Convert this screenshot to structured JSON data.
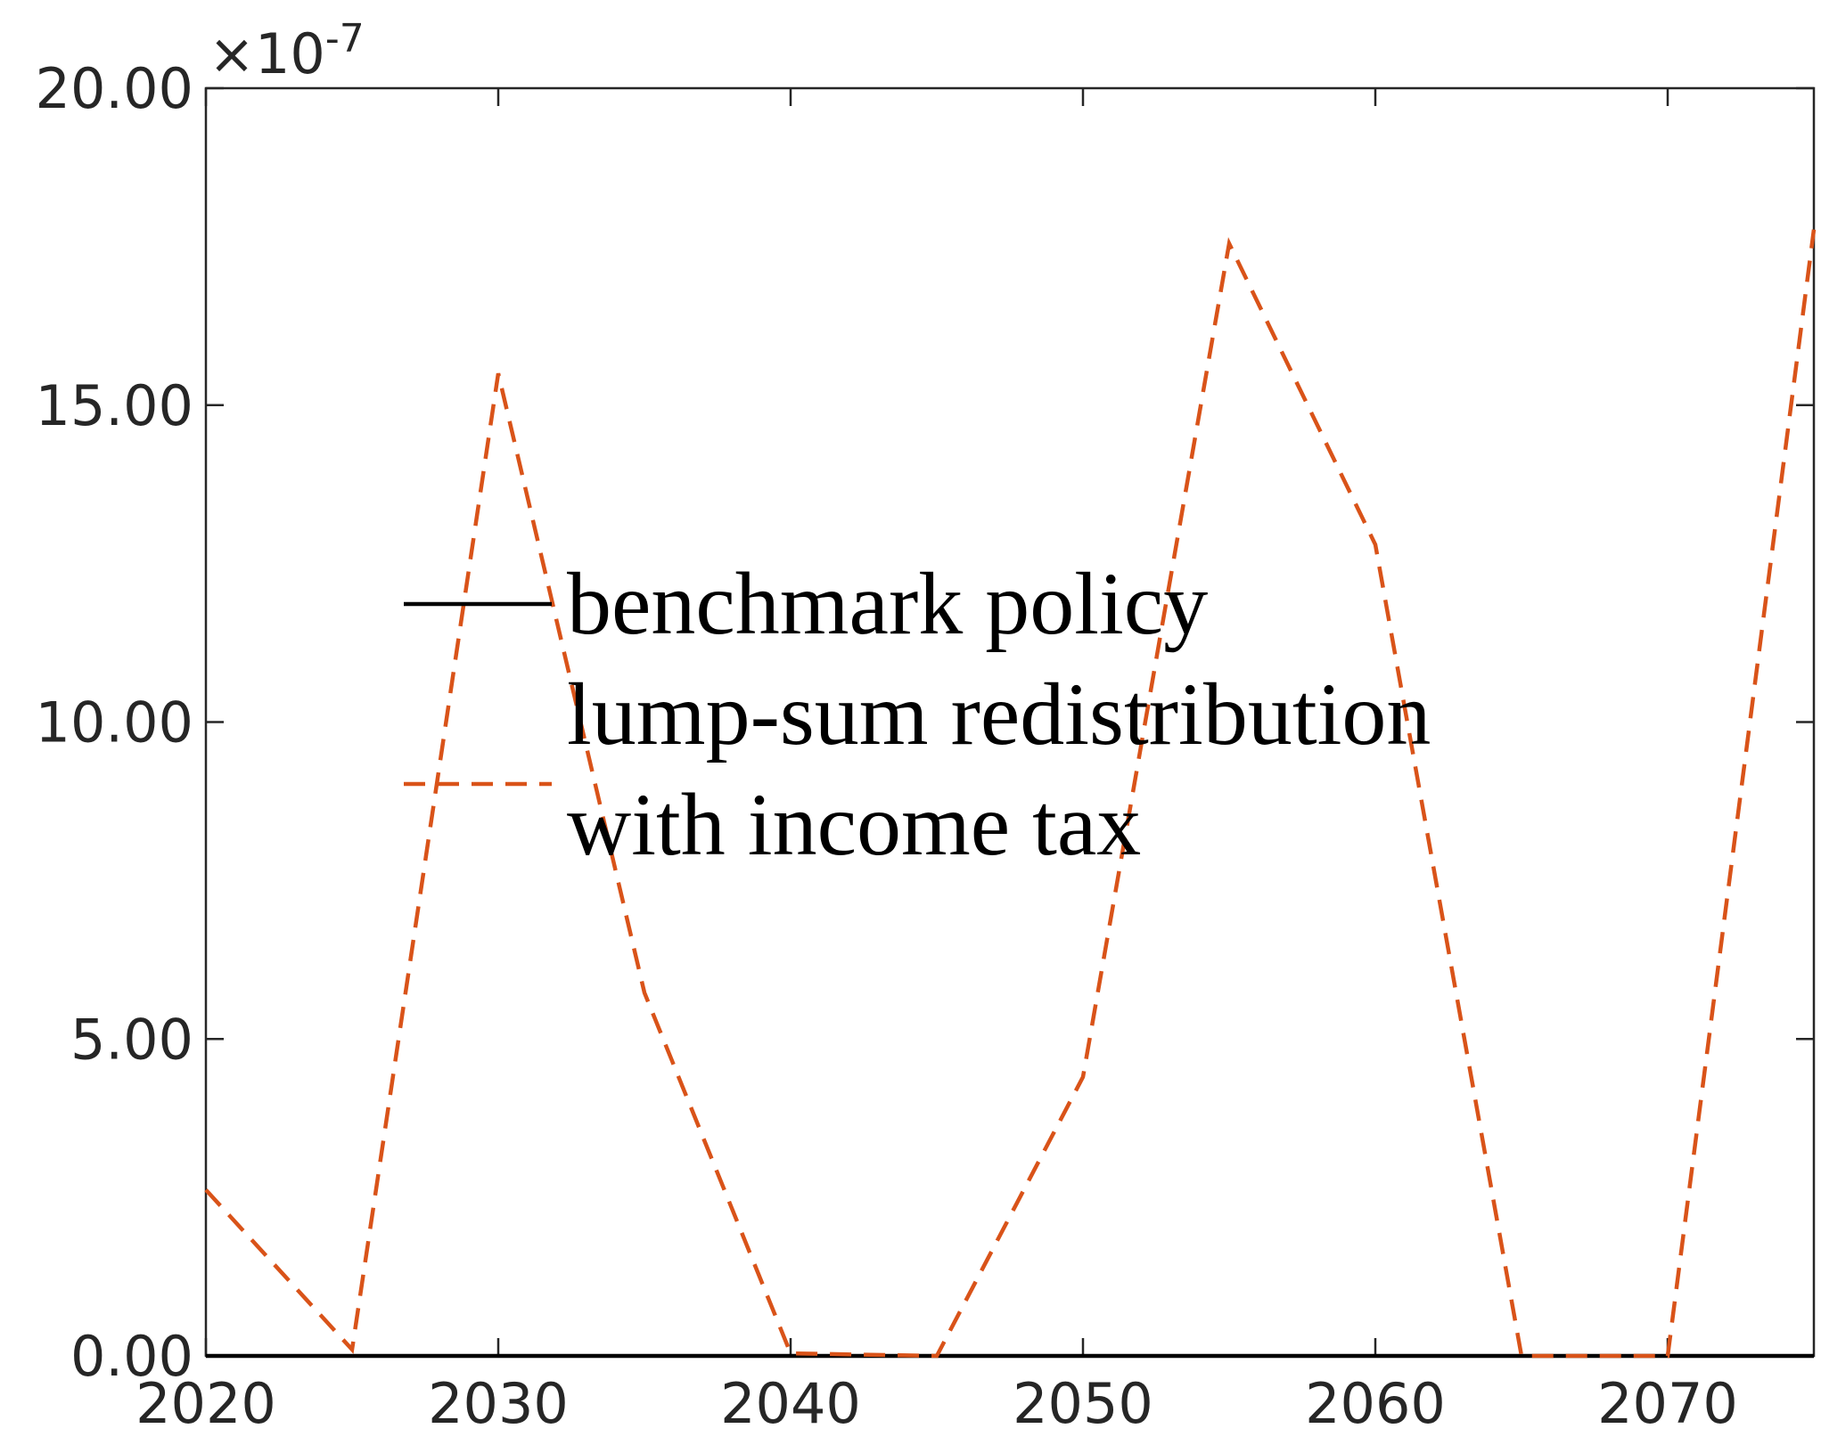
{
  "chart_data": {
    "type": "line",
    "x": [
      2020,
      2025,
      2030,
      2035,
      2040,
      2045,
      2050,
      2055,
      2060,
      2065,
      2070,
      2075
    ],
    "series": [
      {
        "name": "benchmark policy",
        "color": "#000000",
        "dashed": false,
        "values": [
          0,
          0,
          0,
          0,
          0,
          0,
          0,
          0,
          0,
          0,
          0,
          0
        ]
      },
      {
        "name": "lump-sum redistribution with income tax",
        "color": "#d95319",
        "dashed": true,
        "values": [
          2.62,
          0.1,
          15.5,
          5.73,
          0.04,
          0,
          4.4,
          17.55,
          12.8,
          0,
          0,
          17.77
        ]
      }
    ],
    "xlim": [
      2020,
      2075
    ],
    "xticks": [
      2020,
      2030,
      2040,
      2050,
      2060,
      2070
    ],
    "ylim": [
      0,
      20
    ],
    "yticks": [
      {
        "value": 0,
        "label": "0.00"
      },
      {
        "value": 5,
        "label": "5.00"
      },
      {
        "value": 10,
        "label": "10.00"
      },
      {
        "value": 15,
        "label": "15.00"
      },
      {
        "value": 20,
        "label": "20.00"
      }
    ],
    "y_scale_label": {
      "base": "×10",
      "exponent": "-7"
    },
    "grid": false
  }
}
